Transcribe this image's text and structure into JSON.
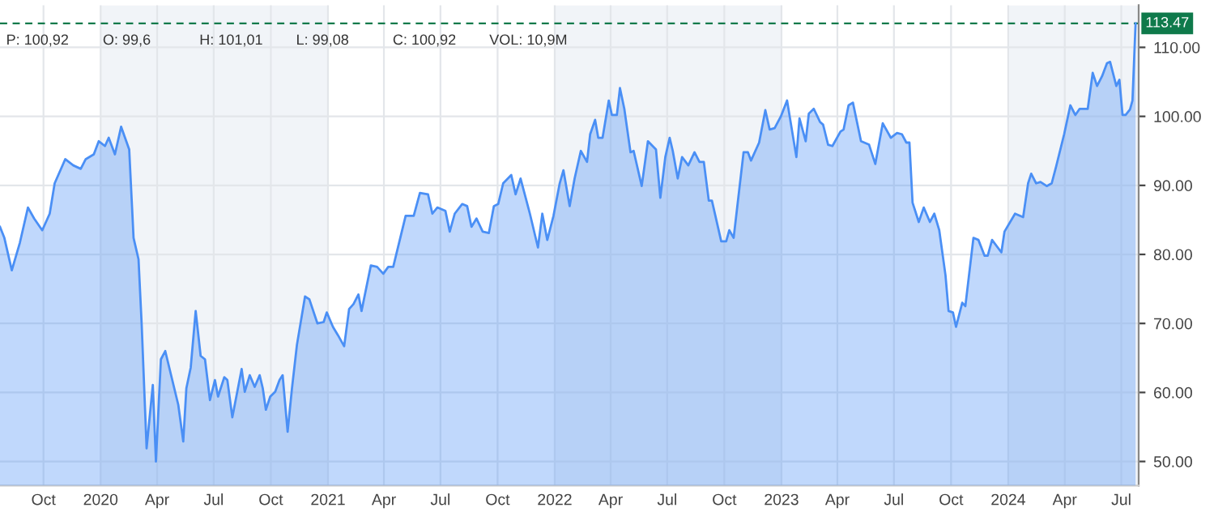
{
  "chart_data": {
    "type": "area",
    "x": [
      "2019-07-23",
      "2019-07-30",
      "2019-08-11",
      "2019-08-24",
      "2019-09-06",
      "2019-09-16",
      "2019-09-29",
      "2019-10-11",
      "2019-10-19",
      "2019-11-05",
      "2019-11-18",
      "2019-11-30",
      "2019-12-08",
      "2019-12-21",
      "2019-12-29",
      "2020-01-08",
      "2020-01-14",
      "2020-01-24",
      "2020-02-03",
      "2020-02-16",
      "2020-02-23",
      "2020-03-02",
      "2020-03-07",
      "2020-03-15",
      "2020-03-25",
      "2020-03-30",
      "2020-04-07",
      "2020-04-14",
      "2020-05-05",
      "2020-05-13",
      "2020-05-18",
      "2020-05-25",
      "2020-06-02",
      "2020-06-10",
      "2020-06-17",
      "2020-06-25",
      "2020-07-03",
      "2020-07-08",
      "2020-07-18",
      "2020-07-23",
      "2020-07-31",
      "2020-08-15",
      "2020-08-20",
      "2020-08-28",
      "2020-09-05",
      "2020-09-13",
      "2020-09-18",
      "2020-09-23",
      "2020-09-30",
      "2020-10-08",
      "2020-10-15",
      "2020-10-20",
      "2020-10-28",
      "2020-11-04",
      "2020-11-12",
      "2020-11-25",
      "2020-12-02",
      "2020-12-15",
      "2020-12-25",
      "2020-12-30",
      "2021-01-09",
      "2021-01-17",
      "2021-01-27",
      "2021-02-04",
      "2021-02-11",
      "2021-02-19",
      "2021-02-24",
      "2021-03-11",
      "2021-03-21",
      "2021-03-31",
      "2021-04-08",
      "2021-04-16",
      "2021-05-06",
      "2021-05-19",
      "2021-05-29",
      "2021-06-11",
      "2021-06-18",
      "2021-06-26",
      "2021-07-09",
      "2021-07-16",
      "2021-07-24",
      "2021-08-05",
      "2021-08-13",
      "2021-08-20",
      "2021-08-28",
      "2021-09-07",
      "2021-09-17",
      "2021-09-25",
      "2021-10-02",
      "2021-10-10",
      "2021-10-23",
      "2021-10-30",
      "2021-11-07",
      "2021-11-22",
      "2021-12-05",
      "2021-12-12",
      "2021-12-20",
      "2021-12-30",
      "2022-01-09",
      "2022-01-15",
      "2022-01-25",
      "2022-02-02",
      "2022-02-12",
      "2022-02-22",
      "2022-02-27",
      "2022-03-07",
      "2022-03-12",
      "2022-03-19",
      "2022-03-29",
      "2022-04-03",
      "2022-04-11",
      "2022-04-16",
      "2022-04-23",
      "2022-05-03",
      "2022-05-08",
      "2022-05-21",
      "2022-05-31",
      "2022-06-13",
      "2022-06-20",
      "2022-06-28",
      "2022-07-05",
      "2022-07-10",
      "2022-07-18",
      "2022-07-25",
      "2022-08-04",
      "2022-08-14",
      "2022-08-22",
      "2022-08-29",
      "2022-09-06",
      "2022-09-11",
      "2022-09-26",
      "2022-10-04",
      "2022-10-09",
      "2022-10-16",
      "2022-11-01",
      "2022-11-08",
      "2022-11-13",
      "2022-11-26",
      "2022-12-06",
      "2022-12-13",
      "2022-12-21",
      "2022-12-31",
      "2023-01-10",
      "2023-01-25",
      "2023-01-30",
      "2023-02-09",
      "2023-02-14",
      "2023-02-22",
      "2023-03-04",
      "2023-03-09",
      "2023-03-17",
      "2023-03-24",
      "2023-04-06",
      "2023-04-11",
      "2023-04-19",
      "2023-04-26",
      "2023-05-09",
      "2023-05-22",
      "2023-06-01",
      "2023-06-13",
      "2023-06-26",
      "2023-07-06",
      "2023-07-14",
      "2023-07-21",
      "2023-07-26",
      "2023-07-31",
      "2023-08-10",
      "2023-08-18",
      "2023-08-28",
      "2023-09-04",
      "2023-09-12",
      "2023-09-22",
      "2023-09-27",
      "2023-10-04",
      "2023-10-09",
      "2023-10-19",
      "2023-10-24",
      "2023-11-06",
      "2023-11-14",
      "2023-11-24",
      "2023-11-29",
      "2023-12-06",
      "2023-12-21",
      "2023-12-26",
      "2024-01-12",
      "2024-01-25",
      "2024-02-02",
      "2024-02-07",
      "2024-02-15",
      "2024-02-22",
      "2024-03-03",
      "2024-03-11",
      "2024-03-18",
      "2024-03-31",
      "2024-04-10",
      "2024-04-18",
      "2024-04-25",
      "2024-05-08",
      "2024-05-16",
      "2024-05-23",
      "2024-05-31",
      "2024-06-08",
      "2024-06-13",
      "2024-06-23",
      "2024-06-28",
      "2024-07-03",
      "2024-07-08",
      "2024-07-15",
      "2024-07-19",
      "2024-07-24"
    ],
    "series": [
      {
        "color": "#4a8ff5",
        "values": [
          84.0,
          82.4,
          77.7,
          81.7,
          86.8,
          85.2,
          83.5,
          85.9,
          90.3,
          93.8,
          92.9,
          92.4,
          93.8,
          94.5,
          96.4,
          95.7,
          96.9,
          94.5,
          98.5,
          95.2,
          82.4,
          79.3,
          70.0,
          51.9,
          61.1,
          50.0,
          64.8,
          66.0,
          58.2,
          52.9,
          60.6,
          63.6,
          71.8,
          65.3,
          64.8,
          58.9,
          61.8,
          59.4,
          62.2,
          61.8,
          56.4,
          63.4,
          60.1,
          62.5,
          60.8,
          62.5,
          60.6,
          57.5,
          59.4,
          60.1,
          61.8,
          62.5,
          54.3,
          60.6,
          66.9,
          73.9,
          73.5,
          70.0,
          70.2,
          71.6,
          69.5,
          68.3,
          66.7,
          72.1,
          72.8,
          74.2,
          71.8,
          78.4,
          78.2,
          77.2,
          78.2,
          78.2,
          85.6,
          85.6,
          88.9,
          88.7,
          85.9,
          86.8,
          86.3,
          83.3,
          85.9,
          87.3,
          87.0,
          84.0,
          85.2,
          83.3,
          83.1,
          87.0,
          87.3,
          90.3,
          91.5,
          88.7,
          91.0,
          85.9,
          81.0,
          85.9,
          82.1,
          85.6,
          90.3,
          92.2,
          87.0,
          91.0,
          95.0,
          93.4,
          97.4,
          99.5,
          96.9,
          96.9,
          102.3,
          100.2,
          100.2,
          104.1,
          101.1,
          94.8,
          95.0,
          89.9,
          96.4,
          95.2,
          88.2,
          94.1,
          96.9,
          95.0,
          91.0,
          94.1,
          92.9,
          94.8,
          93.4,
          93.4,
          87.8,
          87.8,
          81.9,
          81.9,
          83.5,
          82.4,
          94.8,
          94.8,
          93.6,
          96.2,
          100.9,
          98.1,
          98.3,
          100.0,
          102.3,
          94.1,
          99.7,
          96.4,
          100.4,
          101.1,
          99.2,
          98.8,
          95.9,
          95.7,
          97.8,
          98.1,
          101.6,
          102.0,
          96.4,
          95.9,
          93.1,
          99.0,
          96.9,
          97.6,
          97.4,
          96.2,
          96.2,
          87.5,
          84.7,
          86.8,
          84.7,
          85.9,
          83.5,
          77.0,
          71.8,
          71.6,
          69.5,
          73.0,
          72.5,
          82.4,
          82.1,
          79.8,
          79.8,
          82.1,
          80.3,
          83.3,
          85.9,
          85.4,
          90.3,
          91.7,
          90.3,
          90.5,
          89.9,
          90.3,
          92.7,
          97.4,
          101.6,
          100.2,
          101.1,
          101.1,
          106.3,
          104.4,
          105.8,
          107.7,
          107.9,
          104.4,
          105.3,
          100.2,
          100.2,
          101.0,
          102.3,
          113.47
        ]
      }
    ],
    "xlim": [
      "2019-07-23",
      "2024-07-29"
    ],
    "xticks": [
      {
        "value": "2019-10-01",
        "label": "Oct"
      },
      {
        "value": "2020-01-01",
        "label": "2020"
      },
      {
        "value": "2020-04-01",
        "label": "Apr"
      },
      {
        "value": "2020-07-01",
        "label": "Jul"
      },
      {
        "value": "2020-10-01",
        "label": "Oct"
      },
      {
        "value": "2021-01-01",
        "label": "2021"
      },
      {
        "value": "2021-04-01",
        "label": "Apr"
      },
      {
        "value": "2021-07-01",
        "label": "Jul"
      },
      {
        "value": "2021-10-01",
        "label": "Oct"
      },
      {
        "value": "2022-01-01",
        "label": "2022"
      },
      {
        "value": "2022-04-01",
        "label": "Apr"
      },
      {
        "value": "2022-07-01",
        "label": "Jul"
      },
      {
        "value": "2022-10-01",
        "label": "Oct"
      },
      {
        "value": "2023-01-01",
        "label": "2023"
      },
      {
        "value": "2023-04-01",
        "label": "Apr"
      },
      {
        "value": "2023-07-01",
        "label": "Jul"
      },
      {
        "value": "2023-10-01",
        "label": "Oct"
      },
      {
        "value": "2024-01-01",
        "label": "2024"
      },
      {
        "value": "2024-04-01",
        "label": "Apr"
      },
      {
        "value": "2024-07-01",
        "label": "Jul"
      }
    ],
    "ylim": [
      46.5,
      116.1
    ],
    "yticks": [
      {
        "value": 50,
        "label": "50.00"
      },
      {
        "value": 60,
        "label": "60.00"
      },
      {
        "value": 70,
        "label": "70.00"
      },
      {
        "value": 80,
        "label": "80.00"
      },
      {
        "value": 90,
        "label": "90.00"
      },
      {
        "value": 100,
        "label": "100.00"
      },
      {
        "value": 110,
        "label": "110.00"
      }
    ],
    "grid": true,
    "ref_lines": [
      {
        "axis": "y",
        "value": 113.47,
        "label": "113.47",
        "color": "#0f7a4b",
        "line_style": "dashed"
      }
    ],
    "bands": [
      {
        "axis": "x",
        "from": "2020-01-01",
        "to": "2021-01-01",
        "color": "#f1f4f8"
      },
      {
        "axis": "x",
        "from": "2022-01-01",
        "to": "2023-01-01",
        "color": "#f1f4f8"
      },
      {
        "axis": "x",
        "from": "2024-01-01",
        "to": "2024-07-29",
        "color": "#f1f4f8"
      }
    ],
    "annotations": [
      "P: 100,92",
      "O: 99,6",
      "H: 101,01",
      "L: 99,08",
      "C: 100,92",
      "VOL: 10,9M"
    ]
  }
}
